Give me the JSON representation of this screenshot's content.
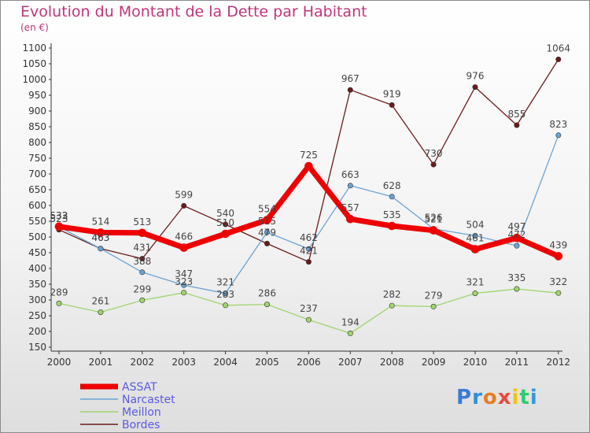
{
  "header": {
    "title": "Evolution du Montant de la Dette par Habitant",
    "unit": "(en €)"
  },
  "logo": {
    "letters": [
      "P",
      "r",
      "o",
      "x",
      "i",
      "t",
      "i"
    ],
    "colors": [
      "#3a7bd5",
      "#2f8fd8",
      "#e67e22",
      "#e74c3c",
      "#f1c40f",
      "#2ecc71",
      "#3498db"
    ]
  },
  "chart_data": {
    "type": "line",
    "x": [
      "2000",
      "2001",
      "2002",
      "2003",
      "2004",
      "2005",
      "2006",
      "2007",
      "2008",
      "2009",
      "2010",
      "2011",
      "2012"
    ],
    "ylim": [
      150,
      1100
    ],
    "yticks": [
      150,
      200,
      250,
      300,
      350,
      400,
      450,
      500,
      550,
      600,
      650,
      700,
      750,
      800,
      850,
      900,
      950,
      1000,
      1050,
      1100
    ],
    "grid": false,
    "legend_position": "bottom-left",
    "series": [
      {
        "name": "Bordes",
        "color": "#6b1a1a",
        "width": 1.3,
        "values": [
          523,
          463,
          431,
          599,
          540,
          479,
          421,
          967,
          919,
          730,
          976,
          855,
          1064
        ]
      },
      {
        "name": "Meillon",
        "color": "#9ed66e",
        "width": 1.3,
        "values": [
          289,
          261,
          299,
          323,
          283,
          286,
          237,
          194,
          282,
          279,
          321,
          335,
          322
        ]
      },
      {
        "name": "Narcastet",
        "color": "#6aa3d5",
        "width": 1.3,
        "values": [
          532,
          463,
          388,
          347,
          321,
          515,
          462,
          663,
          628,
          526,
          504,
          472,
          823
        ]
      },
      {
        "name": "ASSAT",
        "color": "#ee0000",
        "width": 7,
        "values": [
          533,
          514,
          513,
          466,
          510,
          554,
          725,
          557,
          535,
          521,
          461,
          497,
          439
        ]
      }
    ],
    "legend": [
      "ASSAT",
      "Narcastet",
      "Meillon",
      "Bordes"
    ]
  }
}
